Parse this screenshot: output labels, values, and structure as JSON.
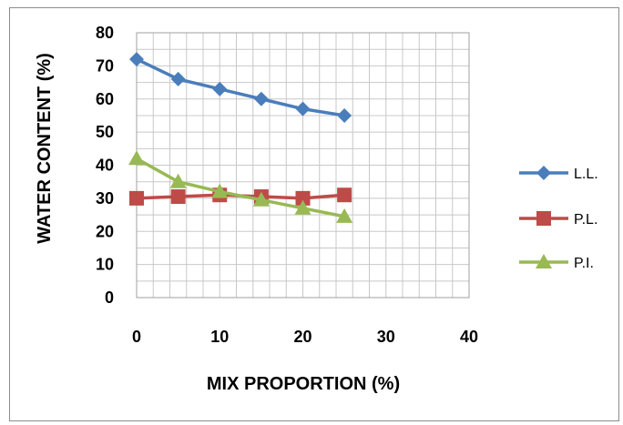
{
  "chart_data": {
    "type": "line",
    "xlabel": "MIX PROPORTION (%)",
    "ylabel": "WATER CONTENT (%)",
    "xlim": [
      0,
      40
    ],
    "ylim": [
      0,
      80
    ],
    "x_ticks": [
      "0",
      "10",
      "20",
      "30",
      "40"
    ],
    "y_ticks": [
      "0",
      "10",
      "20",
      "30",
      "40",
      "50",
      "60",
      "70",
      "80"
    ],
    "grid": true,
    "legend_position": "right",
    "x": [
      0,
      5,
      10,
      15,
      20,
      25
    ],
    "series": [
      {
        "name": "L.L.",
        "values": [
          72,
          66,
          63,
          60,
          57,
          55
        ],
        "color": "#4a7ebb",
        "marker": "diamond"
      },
      {
        "name": "P.L.",
        "values": [
          30,
          30.5,
          31,
          30.5,
          30,
          31
        ],
        "color": "#be4b48",
        "marker": "square"
      },
      {
        "name": "P.I.",
        "values": [
          42,
          35,
          32,
          29.5,
          27,
          24.5
        ],
        "color": "#98b954",
        "marker": "triangle"
      }
    ]
  }
}
